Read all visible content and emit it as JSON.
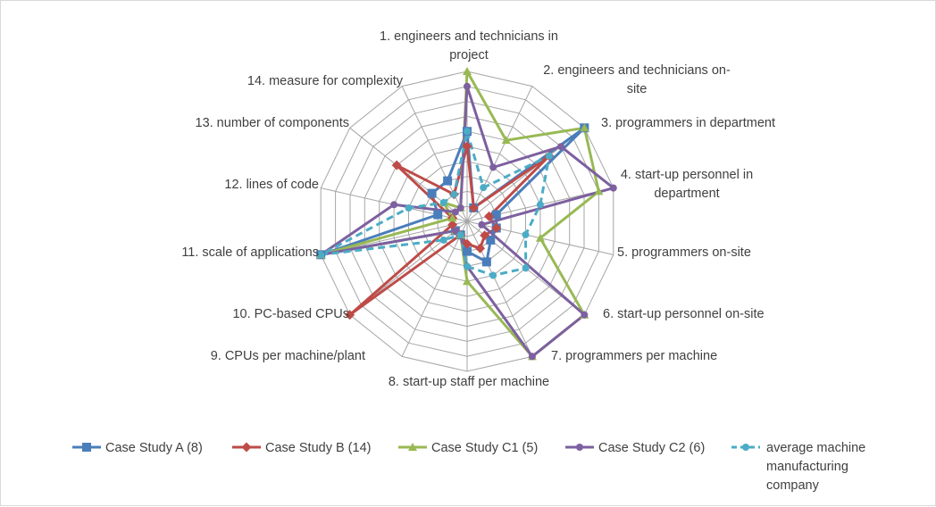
{
  "chart_data": {
    "type": "radar",
    "title": "",
    "axes": [
      "1. engineers and technicians in project",
      "2. engineers and technicians on-site",
      "3. programmers in department",
      "4. start-up personnel in department",
      "5. programmers on-site",
      "6. start-up personnel on-site",
      "7. programmers per machine",
      "8. start-up staff per machine",
      "9. CPUs per machine/plant",
      "10. PC-based CPUs",
      "11. scale of applications",
      "12. lines of code",
      "13. number of components",
      "14. measure for complexity"
    ],
    "range": [
      0,
      10
    ],
    "grid_rings": 10,
    "grid": true,
    "legend_position": "bottom",
    "series": [
      {
        "name": "Case Study A (8)",
        "color": "#4a7ebb",
        "marker": "square",
        "dashed": false,
        "values": [
          6,
          1,
          10,
          2,
          2,
          2,
          3,
          2,
          1,
          1,
          10,
          2,
          3,
          3
        ]
      },
      {
        "name": "Case Study B (14)",
        "color": "#be4b48",
        "marker": "diamond",
        "dashed": false,
        "values": [
          5,
          1,
          7,
          1.5,
          2,
          1.5,
          2,
          1.5,
          1,
          10,
          1,
          1,
          6,
          2
        ]
      },
      {
        "name": "Case Study C1 (5)",
        "color": "#98b954",
        "marker": "triangle",
        "dashed": false,
        "values": [
          10,
          6,
          10,
          9,
          5,
          10,
          10,
          4,
          1,
          1,
          10,
          1,
          2,
          1
        ]
      },
      {
        "name": "Case Study C2 (6)",
        "color": "#7d60a0",
        "marker": "circle",
        "dashed": false,
        "values": [
          9,
          4,
          8,
          10,
          1,
          10,
          10,
          3,
          1,
          1,
          10,
          5,
          1,
          1
        ]
      },
      {
        "name": "average machine manufacturing company",
        "color": "#4bacc6",
        "marker": "circle",
        "dashed": true,
        "values": [
          6,
          2.5,
          7,
          5,
          4,
          5,
          4,
          3,
          1,
          2,
          10,
          4,
          2,
          2
        ]
      }
    ]
  }
}
